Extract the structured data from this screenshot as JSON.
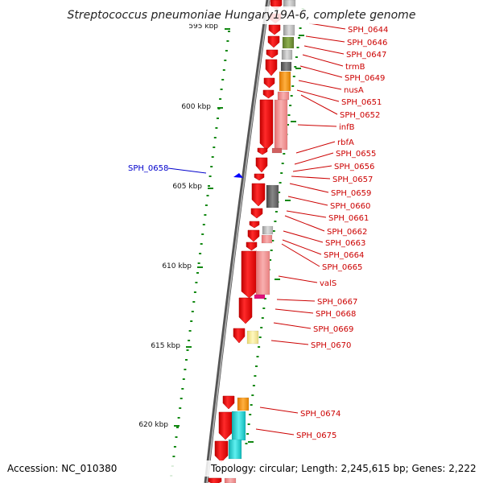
{
  "header": {
    "title": "Streptococcus pneumoniae Hungary19A-6, complete genome"
  },
  "scale": {
    "ticks": [
      "595 kbp",
      "600 kbp",
      "605 kbp",
      "610 kbp",
      "615 kbp",
      "620 kbp"
    ]
  },
  "genes": {
    "right": [
      "SPH_0644",
      "SPH_0646",
      "SPH_0647",
      "trmB",
      "SPH_0649",
      "nusA",
      "SPH_0651",
      "SPH_0652",
      "infB",
      "rbfA",
      "SPH_0655",
      "SPH_0656",
      "SPH_0657",
      "SPH_0659",
      "SPH_0660",
      "SPH_0661",
      "SPH_0662",
      "SPH_0663",
      "SPH_0664",
      "SPH_0665",
      "valS",
      "SPH_0667",
      "SPH_0668",
      "SPH_0669",
      "SPH_0670",
      "SPH_0674",
      "SPH_0675"
    ],
    "left": [
      "SPH_0658"
    ]
  },
  "colors": {
    "forward_cds": "#ff0000",
    "reverse_arrow": "#0000ff",
    "label_red": "#cc0000",
    "label_blue": "#0000cc",
    "gc_green": "#118811",
    "backbone": "#777777"
  },
  "footer": {
    "accession": "Accession: NC_010380",
    "stats": "Topology: circular; Length: 2,245,615 bp; Genes: 2,222"
  }
}
